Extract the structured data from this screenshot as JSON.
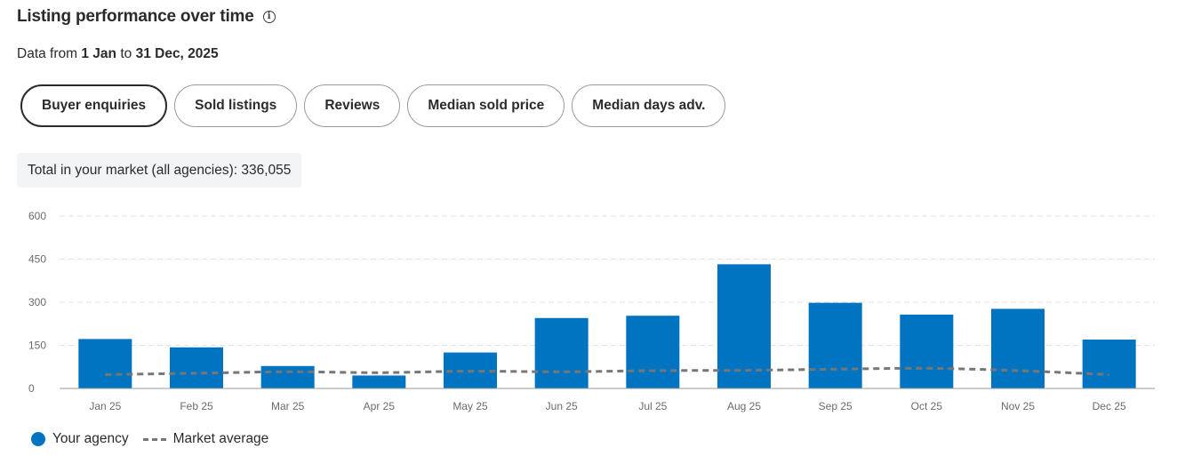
{
  "header": {
    "title": "Listing performance over time",
    "info_icon": "info-icon"
  },
  "date_range": {
    "prefix": "Data from",
    "start": "1 Jan",
    "connector": "to",
    "end": "31 Dec, 2025"
  },
  "tabs": [
    {
      "label": "Buyer enquiries",
      "active": true
    },
    {
      "label": "Sold listings",
      "active": false
    },
    {
      "label": "Reviews",
      "active": false
    },
    {
      "label": "Median sold price",
      "active": false
    },
    {
      "label": "Median days adv.",
      "active": false
    }
  ],
  "total": "Total in your market (all agencies): 336,055",
  "colors": {
    "bar": "#0074c1",
    "market_line": "#777777",
    "grid": "#e3e3e3",
    "axis": "#6b6b6b"
  },
  "chart_data": {
    "type": "bar",
    "categories": [
      "Jan 25",
      "Feb 25",
      "Mar 25",
      "Apr 25",
      "May 25",
      "Jun 25",
      "Jul 25",
      "Aug 25",
      "Sep 25",
      "Oct 25",
      "Nov 25",
      "Dec 25"
    ],
    "series": [
      {
        "name": "Your agency",
        "type": "bar",
        "values": [
          172,
          143,
          78,
          45,
          125,
          245,
          253,
          432,
          298,
          257,
          277,
          170
        ]
      },
      {
        "name": "Market average",
        "type": "line",
        "style": "dashed",
        "values": [
          48,
          53,
          58,
          55,
          60,
          58,
          62,
          63,
          67,
          70,
          62,
          48
        ]
      }
    ],
    "yticks": [
      "600",
      "450",
      "300",
      "150",
      "0"
    ],
    "ytick_values": [
      600,
      450,
      300,
      150,
      0
    ],
    "ylim": [
      0,
      600
    ],
    "grid": true,
    "legend_position": "bottom-left"
  }
}
